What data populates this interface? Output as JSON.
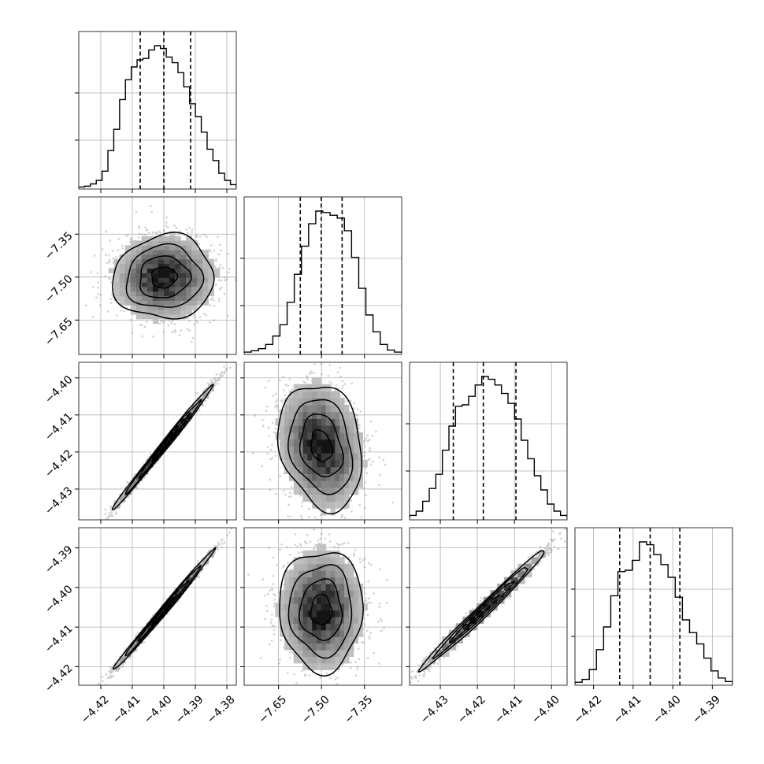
{
  "chart_data": {
    "type": "corner",
    "grid": true,
    "params": [
      {
        "range": [
          -4.427,
          -4.377
        ],
        "ticks": [
          -4.42,
          -4.41,
          -4.4,
          -4.39,
          -4.38
        ],
        "tick_labels": [
          "−4.42",
          "−4.41",
          "−4.40",
          "−4.39",
          "−4.38"
        ],
        "quantiles": [
          -4.4075,
          -4.4,
          -4.3915
        ]
      },
      {
        "range": [
          -7.77,
          -7.22
        ],
        "ticks": [
          -7.65,
          -7.5,
          -7.35
        ],
        "tick_labels": [
          "−7.65",
          "−7.50",
          "−7.35"
        ],
        "quantiles": [
          -7.574,
          -7.501,
          -7.428
        ]
      },
      {
        "range": [
          -4.4383,
          -4.3958
        ],
        "ticks": [
          -4.43,
          -4.42,
          -4.41,
          -4.4
        ],
        "tick_labels": [
          "−4.43",
          "−4.42",
          "−4.41",
          "−4.40"
        ],
        "quantiles": [
          -4.4265,
          -4.4184,
          -4.4096
        ]
      },
      {
        "range": [
          -4.4247,
          -4.3849
        ],
        "ticks": [
          -4.42,
          -4.41,
          -4.4,
          -4.39
        ],
        "tick_labels": [
          "−4.42",
          "−4.41",
          "−4.40",
          "−4.39"
        ],
        "quantiles": [
          -4.4134,
          -4.4057,
          -4.3982
        ]
      }
    ],
    "correlations": {
      "0-1": 0.05,
      "0-2": 0.995,
      "0-3": 0.995,
      "1-2": -0.2,
      "1-3": 0.0,
      "2-3": 0.99
    },
    "histograms": [
      [
        0.3,
        0.9,
        2.5,
        5,
        11.5,
        26,
        41,
        62,
        76,
        85,
        90,
        91,
        97,
        100,
        98,
        92,
        88,
        81,
        71,
        59,
        50,
        39,
        27,
        19,
        10,
        5,
        2
      ],
      [
        0.5,
        1.5,
        3,
        6,
        12,
        20,
        36,
        56,
        76,
        92,
        101,
        100,
        98,
        96,
        87,
        68,
        46,
        27,
        15,
        6,
        2,
        0.5
      ],
      [
        2,
        5,
        12,
        21,
        31,
        48,
        65,
        79,
        80,
        86,
        94,
        100,
        98,
        94,
        88,
        81,
        70,
        55,
        42,
        30,
        20,
        10,
        5,
        2
      ],
      [
        1,
        3,
        10,
        24,
        40,
        62,
        79,
        80,
        87,
        100,
        98,
        91,
        84,
        75,
        61,
        45,
        36,
        28,
        18,
        9,
        4,
        1.5
      ]
    ]
  }
}
